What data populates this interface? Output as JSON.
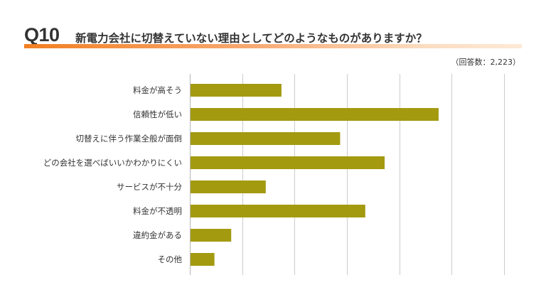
{
  "header": {
    "question_number": "Q10",
    "question_text": "新電力会社に切替えていない理由としてどのようなものがありますか？",
    "respondents_note": "（回答数：2,223）"
  },
  "colors": {
    "bar": "#a39a10",
    "grid": "#cccccc",
    "accent": "#f27f22"
  },
  "chart_data": {
    "type": "bar",
    "orientation": "horizontal",
    "categories": [
      "料金が高そう",
      "信頼性が低い",
      "切替えに伴う作業全般が面倒",
      "どの会社を選べばいいかわかりにくい",
      "サービスが不十分",
      "料金が不透明",
      "違約金がある",
      "その他"
    ],
    "values": [
      17.5,
      47.5,
      28.7,
      37.2,
      14.5,
      33.5,
      7.9,
      4.7
    ],
    "xlim": [
      0,
      60
    ],
    "grid": true,
    "tick_labels_shown": false
  }
}
